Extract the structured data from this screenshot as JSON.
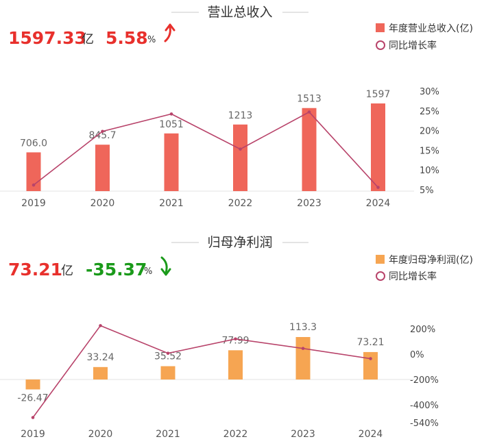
{
  "colors": {
    "revenue_bar": "#ef665a",
    "profit_bar": "#f6a552",
    "growth_line": "#b8436a",
    "up_red": "#e8302c",
    "down_green": "#1a9a1a",
    "key_red": "#e8302c"
  },
  "chart_data": [
    {
      "type": "bar",
      "title": "营业总收入",
      "headline": {
        "value": "1597.33",
        "unit": "亿",
        "change": "5.58",
        "change_unit": "%",
        "direction": "up",
        "arrow_icon": "arrow-up-icon"
      },
      "categories": [
        "2019",
        "2020",
        "2021",
        "2022",
        "2023",
        "2024"
      ],
      "series": [
        {
          "name": "年度营业总收入(亿)",
          "kind": "bar",
          "values": [
            706.0,
            845.7,
            1051,
            1213,
            1513,
            1597
          ],
          "labels": [
            "706.0",
            "845.7",
            "1051",
            "1213",
            "1513",
            "1597"
          ]
        },
        {
          "name": "同比增长率",
          "kind": "line",
          "axis": "right",
          "values": [
            6.2,
            19.8,
            24.2,
            15.3,
            24.7,
            5.6
          ]
        }
      ],
      "ylim": [
        0,
        1800
      ],
      "y2_ticks": [
        "30%",
        "25%",
        "20%",
        "15%",
        "10%",
        "5%"
      ],
      "y2_tick_values": [
        30,
        25,
        20,
        15,
        10,
        5
      ],
      "y2lim": [
        5,
        30
      ],
      "legend_position": "top-right"
    },
    {
      "type": "bar",
      "title": "归母净利润",
      "headline": {
        "value": "73.21",
        "unit": "亿",
        "change": "-35.37",
        "change_unit": "%",
        "direction": "down",
        "arrow_icon": "arrow-down-icon"
      },
      "categories": [
        "2019",
        "2020",
        "2021",
        "2022",
        "2023",
        "2024"
      ],
      "series": [
        {
          "name": "年度归母净利润(亿)",
          "kind": "bar",
          "values": [
            -26.47,
            33.24,
            35.52,
            77.99,
            113.3,
            73.21
          ],
          "labels": [
            "-26.47",
            "33.24",
            "35.52",
            "77.99",
            "113.3",
            "73.21"
          ]
        },
        {
          "name": "同比增长率",
          "kind": "line",
          "axis": "right",
          "values": [
            -500,
            225,
            7,
            120,
            45,
            -35.37
          ]
        }
      ],
      "ylim": [
        -60,
        120
      ],
      "y2_ticks": [
        "200%",
        "0%",
        "-200%",
        "-400%",
        "-540%"
      ],
      "y2_tick_values": [
        200,
        0,
        -200,
        -400,
        -540
      ],
      "legend_position": "top-right"
    }
  ]
}
